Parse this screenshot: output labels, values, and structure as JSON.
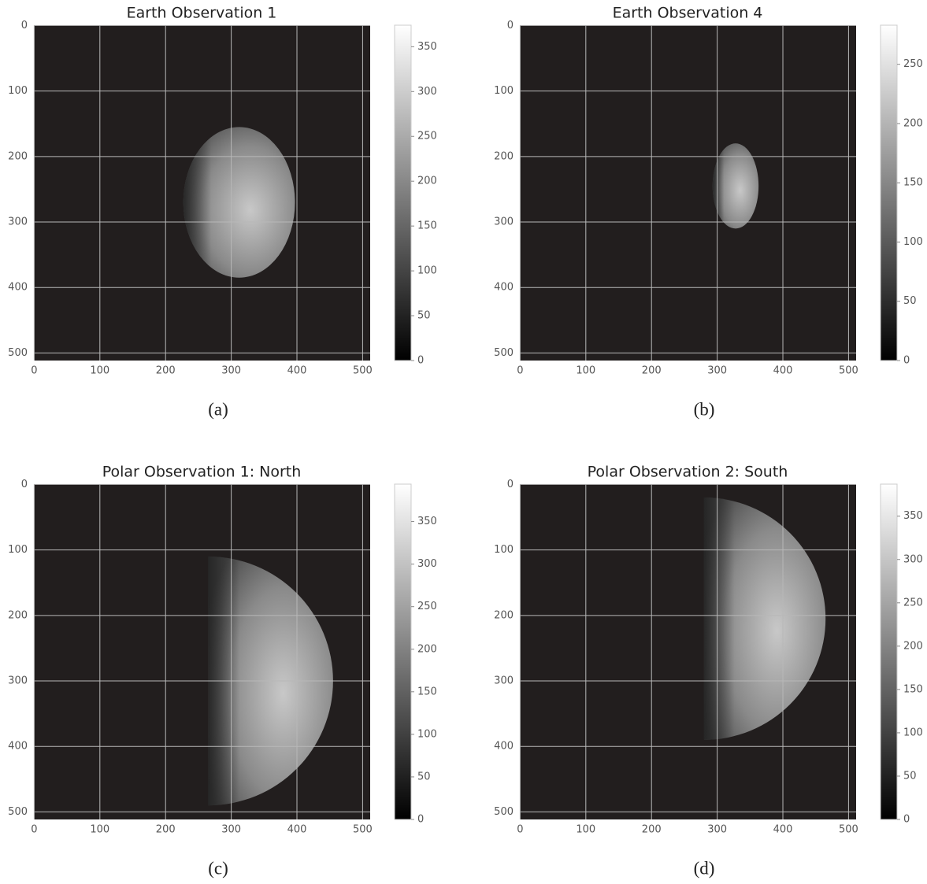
{
  "chart_data": [
    {
      "type": "image",
      "title": "Earth Observation 1",
      "caption": "(a)",
      "cmap": "gray",
      "grid": true,
      "xlim": [
        -0.5,
        511.5
      ],
      "ylim": [
        511.5,
        -0.5
      ],
      "xticks": [
        0,
        100,
        200,
        300,
        400,
        500
      ],
      "yticks": [
        0,
        100,
        200,
        300,
        400,
        500
      ],
      "colorbar": {
        "lim": [
          0,
          374
        ],
        "ticks": [
          0,
          50,
          100,
          150,
          200,
          250,
          300,
          350
        ]
      }
    },
    {
      "type": "image",
      "title": "Earth Observation 4",
      "caption": "(b)",
      "cmap": "gray",
      "grid": true,
      "xlim": [
        -0.5,
        511.5
      ],
      "ylim": [
        511.5,
        -0.5
      ],
      "xticks": [
        0,
        100,
        200,
        300,
        400,
        500
      ],
      "yticks": [
        0,
        100,
        200,
        300,
        400,
        500
      ],
      "colorbar": {
        "lim": [
          0,
          283
        ],
        "ticks": [
          0,
          50,
          100,
          150,
          200,
          250
        ]
      }
    },
    {
      "type": "image",
      "title": "Polar Observation 1: North",
      "caption": "(c)",
      "cmap": "gray",
      "grid": true,
      "xlim": [
        -0.5,
        511.5
      ],
      "ylim": [
        511.5,
        -0.5
      ],
      "xticks": [
        0,
        100,
        200,
        300,
        400,
        500
      ],
      "yticks": [
        0,
        100,
        200,
        300,
        400,
        500
      ],
      "colorbar": {
        "lim": [
          0,
          394
        ],
        "ticks": [
          0,
          50,
          100,
          150,
          200,
          250,
          300,
          350
        ]
      }
    },
    {
      "type": "image",
      "title": "Polar Observation 2: South",
      "caption": "(d)",
      "cmap": "gray",
      "grid": true,
      "xlim": [
        -0.5,
        511.5
      ],
      "ylim": [
        511.5,
        -0.5
      ],
      "xticks": [
        0,
        100,
        200,
        300,
        400,
        500
      ],
      "yticks": [
        0,
        100,
        200,
        300,
        400,
        500
      ],
      "colorbar": {
        "lim": [
          0,
          387
        ],
        "ticks": [
          0,
          50,
          100,
          150,
          200,
          250,
          300,
          350
        ]
      }
    }
  ]
}
